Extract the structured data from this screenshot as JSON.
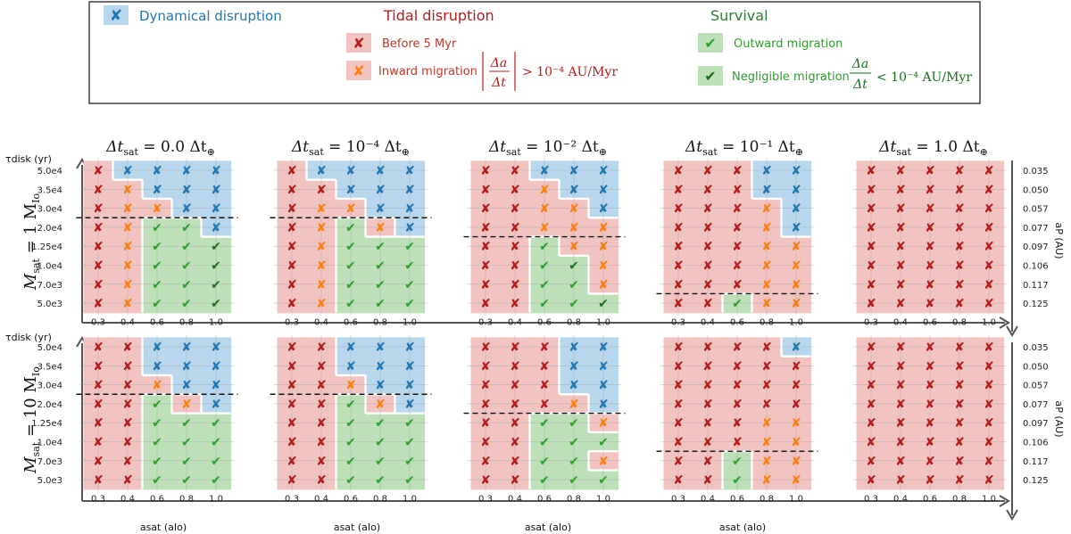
{
  "legend": {
    "dynamical": {
      "label": "Dynamical disruption"
    },
    "tidal": {
      "title": "Tidal disruption",
      "before": "Before 5 Myr",
      "inward": "Inward migration",
      "inward_formula": "> 10⁻⁴ AU/Myr",
      "frac_num": "Δa",
      "frac_den": "Δt"
    },
    "survival": {
      "title": "Survival",
      "outward": "Outward migration",
      "negligible": "Negligible migration",
      "negligible_formula": "< 10⁻⁴ AU/Myr",
      "frac_num": "Δa",
      "frac_den": "Δt"
    }
  },
  "colors": {
    "blue": "#1f77b4",
    "red": "#b71c1c",
    "orange": "#ff7f0e",
    "green": "#2ca02c",
    "darkgreen": "#1b6e1b",
    "blue_bg": "#b9d7ec",
    "red_bg": "#f1c4c2",
    "green_bg": "#bde0b8",
    "tidal_title": "#b71c1c",
    "survival_title": "#2e7d32"
  },
  "chart_data": {
    "type": "table",
    "column_titles": [
      {
        "main": "Δt",
        "sub": "sat",
        "rest": " = 0.0 Δt",
        "end": "⊕"
      },
      {
        "main": "Δt",
        "sub": "sat",
        "rest": " = 10⁻⁴ Δt",
        "end": "⊕"
      },
      {
        "main": "Δt",
        "sub": "sat",
        "rest": " = 10⁻² Δt",
        "end": "⊕"
      },
      {
        "main": "Δt",
        "sub": "sat",
        "rest": " = 10⁻¹ Δt",
        "end": "⊕"
      },
      {
        "main": "Δt",
        "sub": "sat",
        "rest": " = 1.0 Δt",
        "end": "⊕"
      }
    ],
    "row_titles": [
      {
        "main": "M",
        "sub": "sat",
        "rest": " = 1 M",
        "end": "Io"
      },
      {
        "main": "M",
        "sub": "sat",
        "rest": " = 10 M",
        "end": "Io"
      }
    ],
    "y_axis_title": "τdisk (yr)",
    "x_axis_title": "asat (aIo)",
    "right_axis_title": "aP (AU)",
    "x_ticks": [
      "0.3",
      "0.4",
      "0.6",
      "0.8",
      "1.0"
    ],
    "y_ticks": [
      "5.0e4",
      "3.5e4",
      "3.0e4",
      "2.0e4",
      "1.25e4",
      "1.0e4",
      "7.0e3",
      "5.0e3"
    ],
    "ap_ticks": [
      "0.035",
      "0.050",
      "0.057",
      "0.077",
      "0.097",
      "0.106",
      "0.117",
      "0.125"
    ],
    "legend_codes": {
      "B": "dynamical disruption",
      "R": "tidal disruption before 5 Myr",
      "O": "tidal disruption, inward migration",
      "G": "survival, outward migration",
      "D": "survival, negligible migration"
    },
    "panels": [
      {
        "row": 0,
        "col": 0,
        "dash_after_row": 2,
        "grid": [
          [
            "R",
            "B",
            "B",
            "B",
            "B"
          ],
          [
            "R",
            "O",
            "B",
            "B",
            "B"
          ],
          [
            "R",
            "O",
            "O",
            "B",
            "B"
          ],
          [
            "R",
            "O",
            "G",
            "G",
            "B"
          ],
          [
            "R",
            "O",
            "G",
            "G",
            "D"
          ],
          [
            "R",
            "O",
            "G",
            "G",
            "D"
          ],
          [
            "R",
            "O",
            "G",
            "G",
            "D"
          ],
          [
            "R",
            "O",
            "G",
            "G",
            "D"
          ]
        ]
      },
      {
        "row": 0,
        "col": 1,
        "dash_after_row": 2,
        "grid": [
          [
            "R",
            "B",
            "B",
            "B",
            "B"
          ],
          [
            "R",
            "R",
            "B",
            "B",
            "B"
          ],
          [
            "R",
            "O",
            "O",
            "B",
            "B"
          ],
          [
            "R",
            "O",
            "G",
            "O",
            "B"
          ],
          [
            "R",
            "O",
            "G",
            "G",
            "G"
          ],
          [
            "R",
            "O",
            "G",
            "G",
            "G"
          ],
          [
            "R",
            "O",
            "G",
            "G",
            "G"
          ],
          [
            "R",
            "O",
            "G",
            "G",
            "G"
          ]
        ]
      },
      {
        "row": 0,
        "col": 2,
        "dash_after_row": 3,
        "grid": [
          [
            "R",
            "R",
            "B",
            "B",
            "B"
          ],
          [
            "R",
            "R",
            "O",
            "B",
            "B"
          ],
          [
            "R",
            "R",
            "O",
            "O",
            "B"
          ],
          [
            "R",
            "R",
            "O",
            "O",
            "O"
          ],
          [
            "R",
            "R",
            "G",
            "O",
            "O"
          ],
          [
            "R",
            "R",
            "G",
            "D",
            "O"
          ],
          [
            "R",
            "R",
            "G",
            "G",
            "O"
          ],
          [
            "R",
            "R",
            "G",
            "G",
            "D"
          ]
        ]
      },
      {
        "row": 0,
        "col": 3,
        "dash_after_row": 6,
        "grid": [
          [
            "R",
            "R",
            "R",
            "B",
            "B"
          ],
          [
            "R",
            "R",
            "R",
            "B",
            "B"
          ],
          [
            "R",
            "R",
            "R",
            "O",
            "B"
          ],
          [
            "R",
            "R",
            "R",
            "O",
            "B"
          ],
          [
            "R",
            "R",
            "R",
            "O",
            "O"
          ],
          [
            "R",
            "R",
            "R",
            "O",
            "O"
          ],
          [
            "R",
            "R",
            "R",
            "O",
            "O"
          ],
          [
            "R",
            "R",
            "G",
            "O",
            "O"
          ]
        ]
      },
      {
        "row": 0,
        "col": 4,
        "dash_after_row": -1,
        "grid": [
          [
            "R",
            "R",
            "R",
            "R",
            "R"
          ],
          [
            "R",
            "R",
            "R",
            "R",
            "R"
          ],
          [
            "R",
            "R",
            "R",
            "R",
            "R"
          ],
          [
            "R",
            "R",
            "R",
            "R",
            "R"
          ],
          [
            "R",
            "R",
            "R",
            "R",
            "R"
          ],
          [
            "R",
            "R",
            "R",
            "R",
            "R"
          ],
          [
            "R",
            "R",
            "R",
            "R",
            "R"
          ],
          [
            "R",
            "R",
            "R",
            "R",
            "R"
          ]
        ]
      },
      {
        "row": 1,
        "col": 0,
        "dash_after_row": 2,
        "grid": [
          [
            "R",
            "R",
            "B",
            "B",
            "B"
          ],
          [
            "R",
            "R",
            "B",
            "B",
            "B"
          ],
          [
            "R",
            "R",
            "O",
            "B",
            "B"
          ],
          [
            "R",
            "R",
            "G",
            "O",
            "B"
          ],
          [
            "R",
            "R",
            "G",
            "G",
            "G"
          ],
          [
            "R",
            "R",
            "G",
            "G",
            "G"
          ],
          [
            "R",
            "R",
            "G",
            "G",
            "G"
          ],
          [
            "R",
            "R",
            "G",
            "G",
            "G"
          ]
        ]
      },
      {
        "row": 1,
        "col": 1,
        "dash_after_row": 2,
        "grid": [
          [
            "R",
            "R",
            "B",
            "B",
            "B"
          ],
          [
            "R",
            "R",
            "B",
            "B",
            "B"
          ],
          [
            "R",
            "R",
            "O",
            "B",
            "B"
          ],
          [
            "R",
            "R",
            "G",
            "O",
            "B"
          ],
          [
            "R",
            "R",
            "G",
            "G",
            "G"
          ],
          [
            "R",
            "R",
            "G",
            "G",
            "G"
          ],
          [
            "R",
            "R",
            "G",
            "G",
            "G"
          ],
          [
            "R",
            "R",
            "G",
            "G",
            "G"
          ]
        ]
      },
      {
        "row": 1,
        "col": 2,
        "dash_after_row": 3,
        "grid": [
          [
            "R",
            "R",
            "R",
            "B",
            "B"
          ],
          [
            "R",
            "R",
            "R",
            "B",
            "B"
          ],
          [
            "R",
            "R",
            "R",
            "B",
            "B"
          ],
          [
            "R",
            "R",
            "R",
            "O",
            "B"
          ],
          [
            "R",
            "R",
            "G",
            "G",
            "O"
          ],
          [
            "R",
            "R",
            "G",
            "G",
            "G"
          ],
          [
            "R",
            "R",
            "G",
            "G",
            "O"
          ],
          [
            "R",
            "R",
            "G",
            "G",
            "G"
          ]
        ]
      },
      {
        "row": 1,
        "col": 3,
        "dash_after_row": 5,
        "grid": [
          [
            "R",
            "R",
            "R",
            "R",
            "B"
          ],
          [
            "R",
            "R",
            "R",
            "R",
            "R"
          ],
          [
            "R",
            "R",
            "R",
            "R",
            "R"
          ],
          [
            "R",
            "R",
            "R",
            "R",
            "R"
          ],
          [
            "R",
            "R",
            "R",
            "O",
            "O"
          ],
          [
            "R",
            "R",
            "R",
            "O",
            "O"
          ],
          [
            "R",
            "R",
            "G",
            "O",
            "O"
          ],
          [
            "R",
            "R",
            "G",
            "O",
            "O"
          ]
        ]
      },
      {
        "row": 1,
        "col": 4,
        "dash_after_row": -1,
        "grid": [
          [
            "R",
            "R",
            "R",
            "R",
            "R"
          ],
          [
            "R",
            "R",
            "R",
            "R",
            "R"
          ],
          [
            "R",
            "R",
            "R",
            "R",
            "R"
          ],
          [
            "R",
            "R",
            "R",
            "R",
            "R"
          ],
          [
            "R",
            "R",
            "R",
            "R",
            "R"
          ],
          [
            "R",
            "R",
            "R",
            "R",
            "R"
          ],
          [
            "R",
            "R",
            "R",
            "R",
            "R"
          ],
          [
            "R",
            "R",
            "R",
            "R",
            "R"
          ]
        ]
      }
    ]
  }
}
